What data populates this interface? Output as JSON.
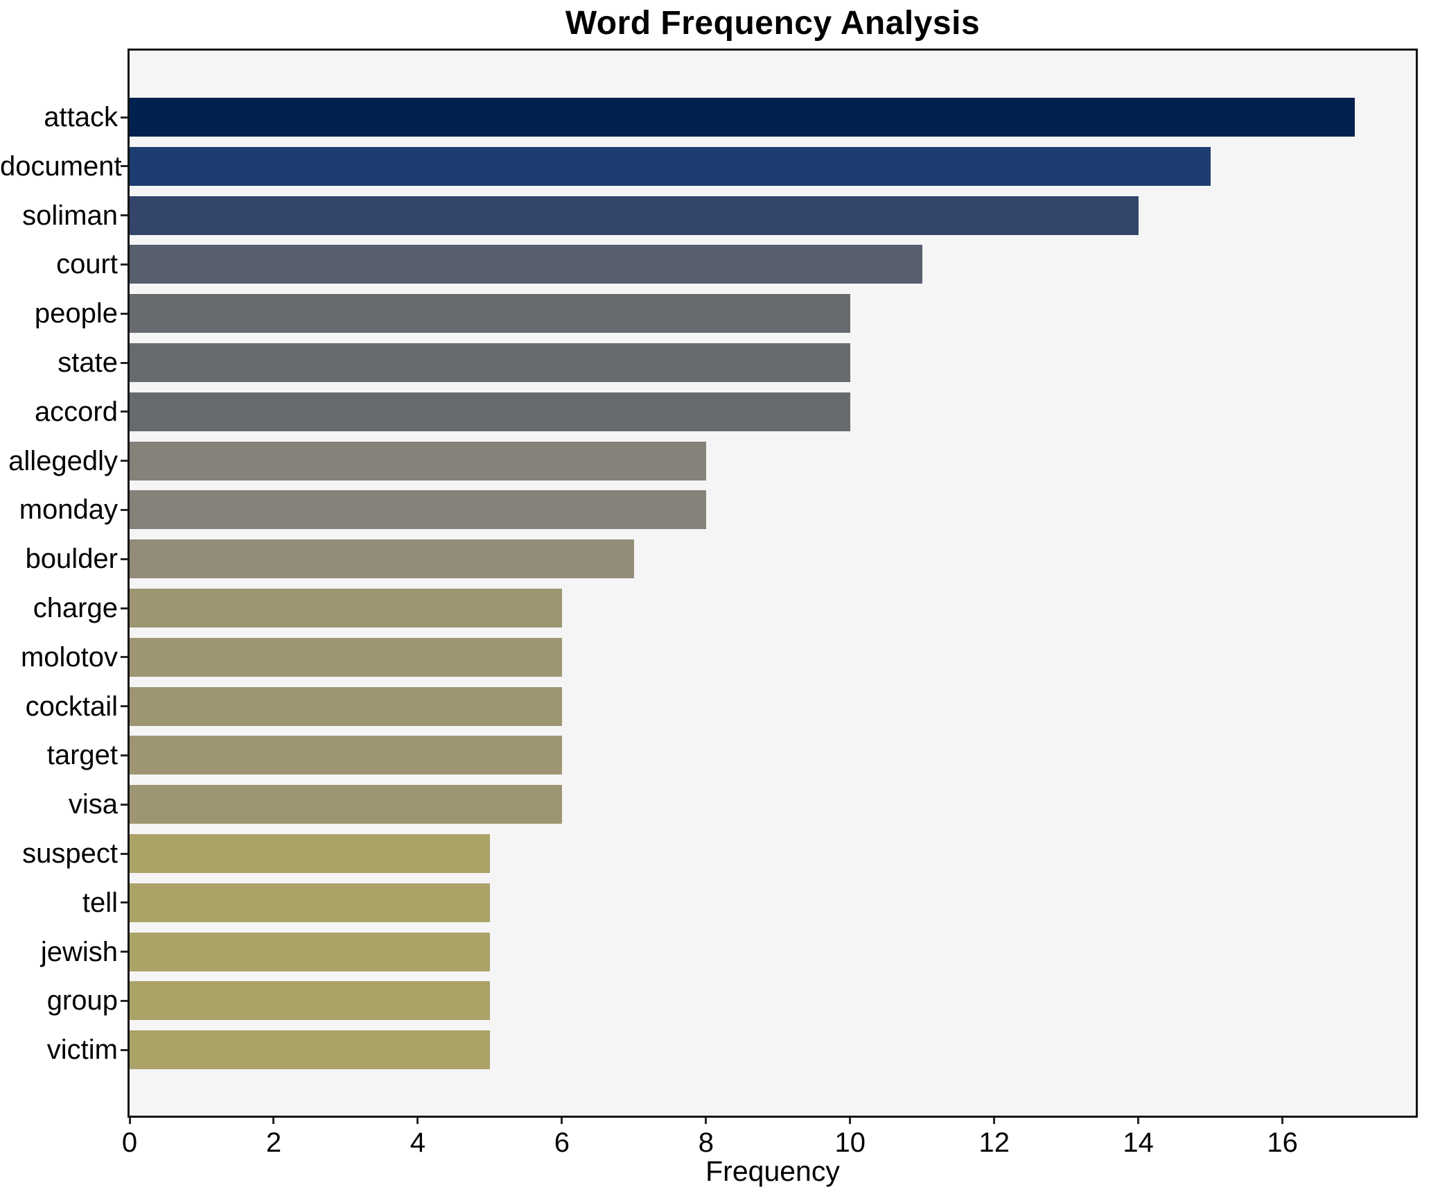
{
  "chart_data": {
    "type": "bar",
    "orientation": "horizontal",
    "title": "Word Frequency Analysis",
    "xlabel": "Frequency",
    "ylabel": "",
    "grid": false,
    "legend": null,
    "xlim": [
      0,
      17.85
    ],
    "xticks": [
      0,
      2,
      4,
      6,
      8,
      10,
      12,
      14,
      16
    ],
    "categories": [
      "attack",
      "document",
      "soliman",
      "court",
      "people",
      "state",
      "accord",
      "allegedly",
      "monday",
      "boulder",
      "charge",
      "molotov",
      "cocktail",
      "target",
      "visa",
      "suspect",
      "tell",
      "jewish",
      "group",
      "victim"
    ],
    "values": [
      17,
      15,
      14,
      11,
      10,
      10,
      10,
      8,
      8,
      7,
      6,
      6,
      6,
      6,
      6,
      5,
      5,
      5,
      5,
      5
    ],
    "bar_colors": [
      "#01214e",
      "#1d3c70",
      "#33456b",
      "#575e6d",
      "#676a6e",
      "#676a6e",
      "#676a6e",
      "#868179",
      "#868179",
      "#928c78",
      "#9e9672",
      "#9e9672",
      "#9e9672",
      "#9e9672",
      "#9e9672",
      "#aba268",
      "#aba268",
      "#aba268",
      "#aba268",
      "#aba268"
    ],
    "colors": {
      "figure_bg": "#ffffff",
      "plot_bg": "#f5f5f6",
      "spine": "#141414",
      "tick": "#262626",
      "text": "#000000"
    }
  }
}
